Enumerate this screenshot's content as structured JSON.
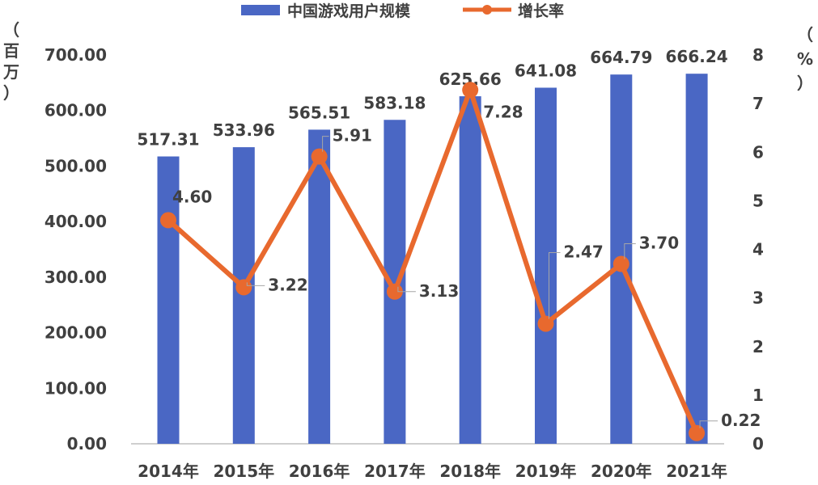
{
  "chart_data": {
    "type": "bar",
    "categories": [
      "2014年",
      "2015年",
      "2016年",
      "2017年",
      "2018年",
      "2019年",
      "2020年",
      "2021年"
    ],
    "series": [
      {
        "name": "中国游戏用户规模",
        "type": "bar",
        "axis": "left",
        "values": [
          517.31,
          533.96,
          565.51,
          583.18,
          625.66,
          641.08,
          664.79,
          666.24
        ],
        "labels": [
          "517.31",
          "533.96",
          "565.51",
          "583.18",
          "625.66",
          "641.08",
          "664.79",
          "666.24"
        ],
        "color": "#4A67C4"
      },
      {
        "name": "增长率",
        "type": "line",
        "axis": "right",
        "values": [
          4.6,
          3.22,
          5.91,
          3.13,
          7.28,
          2.47,
          3.7,
          0.22
        ],
        "labels": [
          "4.60",
          "3.22",
          "5.91",
          "3.13",
          "7.28",
          "2.47",
          "3.70",
          "0.22"
        ],
        "color": "#E8692E"
      }
    ],
    "ylim_left": [
      0,
      700
    ],
    "yticks_left": [
      "0.00",
      "100.00",
      "200.00",
      "300.00",
      "400.00",
      "500.00",
      "600.00",
      "700.00"
    ],
    "ylim_right": [
      0,
      8
    ],
    "yticks_right": [
      "0",
      "1",
      "2",
      "3",
      "4",
      "5",
      "6",
      "7",
      "8"
    ],
    "ylabel_left": [
      "（",
      "百",
      "万",
      "）"
    ],
    "ylabel_right": [
      "（",
      "%",
      "）"
    ],
    "legend_position": "top-center",
    "grid": false
  }
}
